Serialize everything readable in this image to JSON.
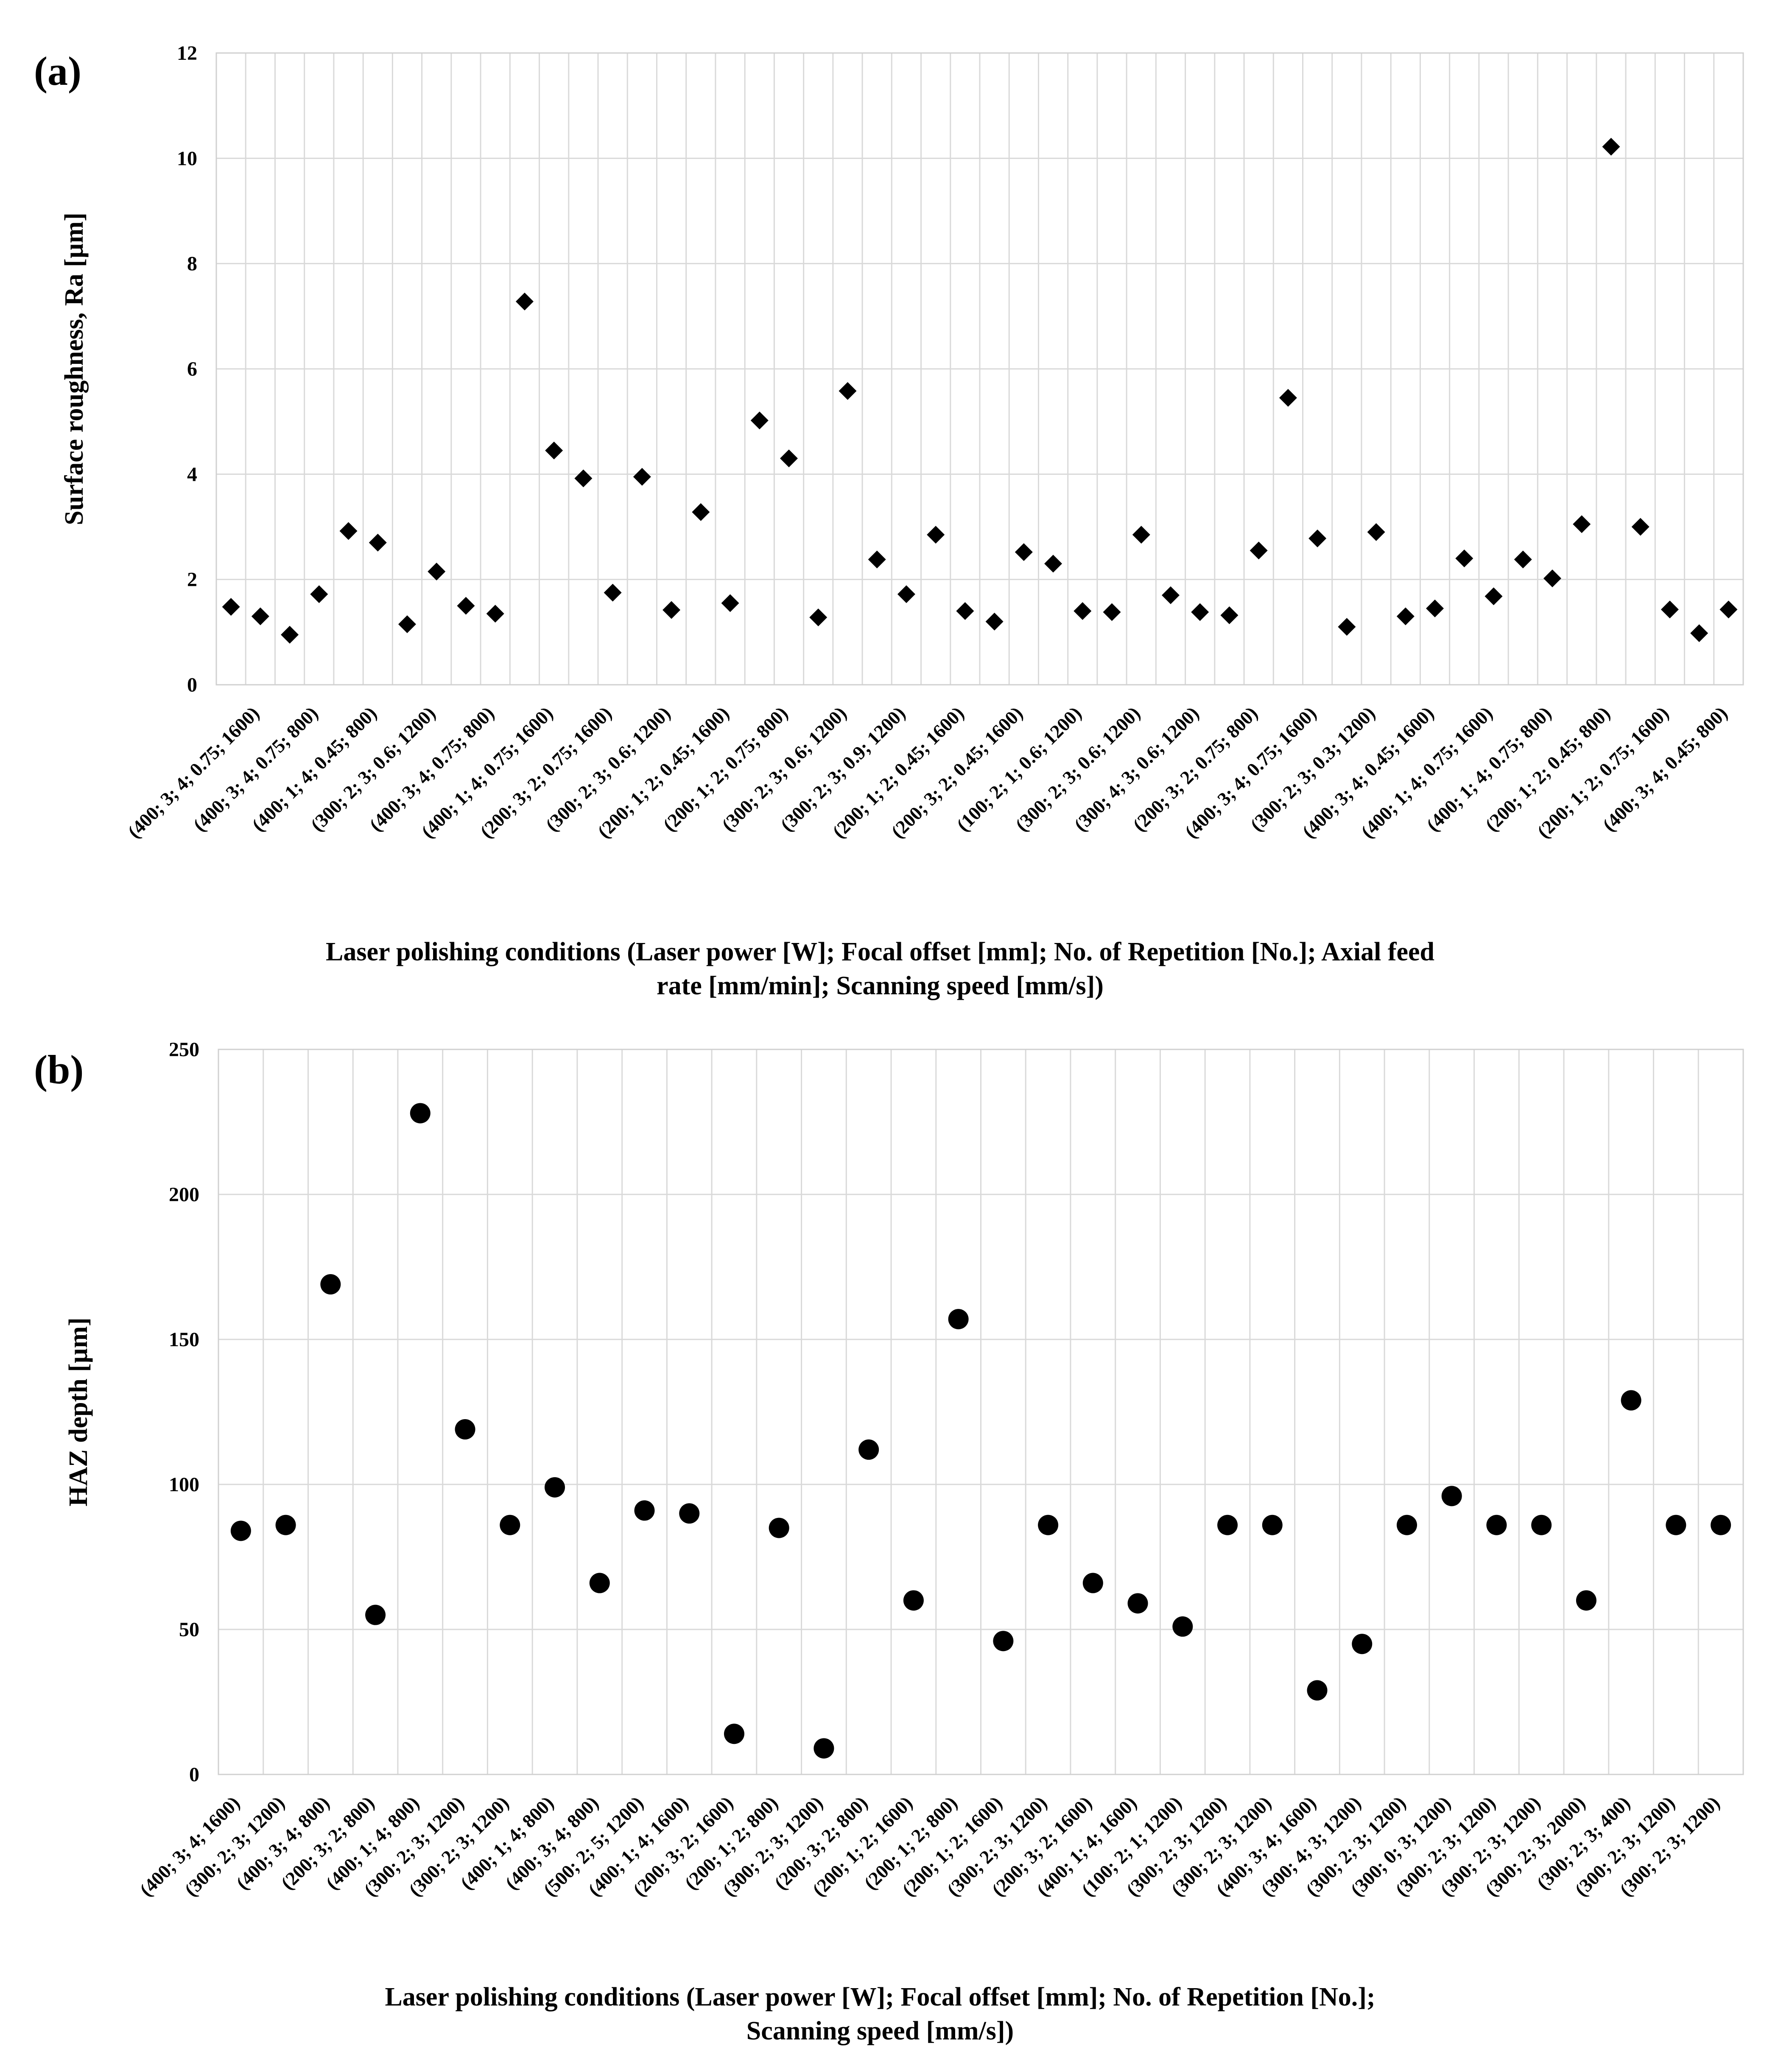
{
  "chart_data": [
    {
      "type": "scatter",
      "panel_label": "(a)",
      "marker": "diamond",
      "ylabel": "Surface roughness, Ra [µm]",
      "xlabel_lines": [
        "Laser polishing conditions (Laser power [W]; Focal offset [mm]; No. of Repetition [No.]; Axial feed",
        "rate [mm/min]; Scanning speed [mm/s])"
      ],
      "ylim": [
        0,
        12
      ],
      "yticks": [
        "0",
        "2",
        "4",
        "6",
        "8",
        "10",
        "12"
      ],
      "ytick_values": [
        0,
        2,
        4,
        6,
        8,
        10,
        12
      ],
      "grid": true,
      "x_labels": [
        "(400; 3; 4; 0.75; 1600)",
        "(400; 3; 4; 0.75; 800)",
        "(400; 1; 4; 0.45; 800)",
        "(300; 2; 3; 0.6; 1200)",
        "(400; 3; 4; 0.75; 800)",
        "(400; 1; 4; 0.75; 1600)",
        "(200; 3; 2; 0.75; 1600)",
        "(300; 2; 3; 0.6; 1200)",
        "(200; 1; 2; 0.45; 1600)",
        "(200; 1; 2; 0.75; 800)",
        "(300; 2; 3; 0.6; 1200)",
        "(300; 2; 3; 0.9; 1200)",
        "(200; 1; 2; 0.45; 1600)",
        "(200; 3; 2; 0.45; 1600)",
        "(100; 2; 1; 0.6; 1200)",
        "(300; 2; 3; 0.6; 1200)",
        "(300; 4; 3; 0.6; 1200)",
        "(200; 3; 2; 0.75; 800)",
        "(400; 3; 4; 0.75; 1600)",
        "(300; 2; 3; 0.3; 1200)",
        "(400; 3; 4; 0.45; 1600)",
        "(400; 1; 4; 0.75; 1600)",
        "(400; 1; 4; 0.75; 800)",
        "(200; 1; 2; 0.45; 800)",
        "(200; 1; 2; 0.75; 1600)",
        "(400; 3; 4; 0.45; 800)"
      ],
      "values": [
        1.48,
        1.3,
        0.95,
        1.72,
        2.92,
        2.7,
        1.15,
        2.15,
        1.5,
        1.35,
        7.28,
        4.45,
        3.92,
        1.75,
        3.95,
        1.42,
        3.28,
        1.55,
        5.02,
        4.3,
        1.28,
        5.58,
        2.38,
        1.72,
        2.85,
        1.4,
        1.2,
        2.52,
        2.3,
        1.4,
        1.38,
        2.85,
        1.7,
        1.38,
        1.32,
        2.55,
        5.45,
        2.78,
        1.1,
        2.9,
        1.3,
        1.45,
        2.4,
        1.68,
        2.38,
        2.02,
        3.05,
        10.22,
        3.0,
        1.43,
        0.98,
        1.43
      ]
    },
    {
      "type": "scatter",
      "panel_label": "(b)",
      "marker": "circle",
      "ylabel": "HAZ depth [µm]",
      "xlabel_lines": [
        "Laser polishing conditions (Laser power [W]; Focal offset [mm]; No. of Repetition [No.];",
        "Scanning speed [mm/s])"
      ],
      "ylim": [
        0,
        250
      ],
      "yticks": [
        "0",
        "50",
        "100",
        "150",
        "200",
        "250"
      ],
      "ytick_values": [
        0,
        50,
        100,
        150,
        200,
        250
      ],
      "grid": true,
      "x_labels": [
        "(400; 3; 4; 1600)",
        "(300; 2; 3; 1200)",
        "(400; 3; 4; 800)",
        "(200; 3; 2; 800)",
        "(400; 1; 4; 800)",
        "(300; 2; 3; 1200)",
        "(300; 2; 3; 1200)",
        "(400; 1; 4; 800)",
        "(400; 3; 4; 800)",
        "(500; 2; 5; 1200)",
        "(400; 1; 4; 1600)",
        "(200; 3; 2; 1600)",
        "(200; 1; 2; 800)",
        "(300; 2; 3; 1200)",
        "(200; 3; 2; 800)",
        "(200; 1; 2; 1600)",
        "(200; 1; 2; 800)",
        "(200; 1; 2; 1600)",
        "(300; 2; 3; 1200)",
        "(200; 3; 2; 1600)",
        "(400; 1; 4; 1600)",
        "(100; 2; 1; 1200)",
        "(300; 2; 3; 1200)",
        "(300; 2; 3; 1200)",
        "(400; 3; 4; 1600)",
        "(300; 4; 3; 1200)",
        "(300; 2; 3; 1200)",
        "(300; 0; 3; 1200)",
        "(300; 2; 3; 1200)",
        "(300; 2; 3; 1200)",
        "(300; 2; 3; 2000)",
        "(300; 2; 3; 400)",
        "(300; 2; 3; 1200)",
        "(300; 2; 3; 1200)"
      ],
      "values": [
        84,
        86,
        169,
        55,
        228,
        119,
        86,
        99,
        66,
        91,
        90,
        14,
        85,
        9,
        112,
        60,
        157,
        46,
        86,
        66,
        59,
        51,
        86,
        86,
        29,
        45,
        86,
        96,
        86,
        86,
        60,
        129,
        86,
        86
      ]
    }
  ]
}
